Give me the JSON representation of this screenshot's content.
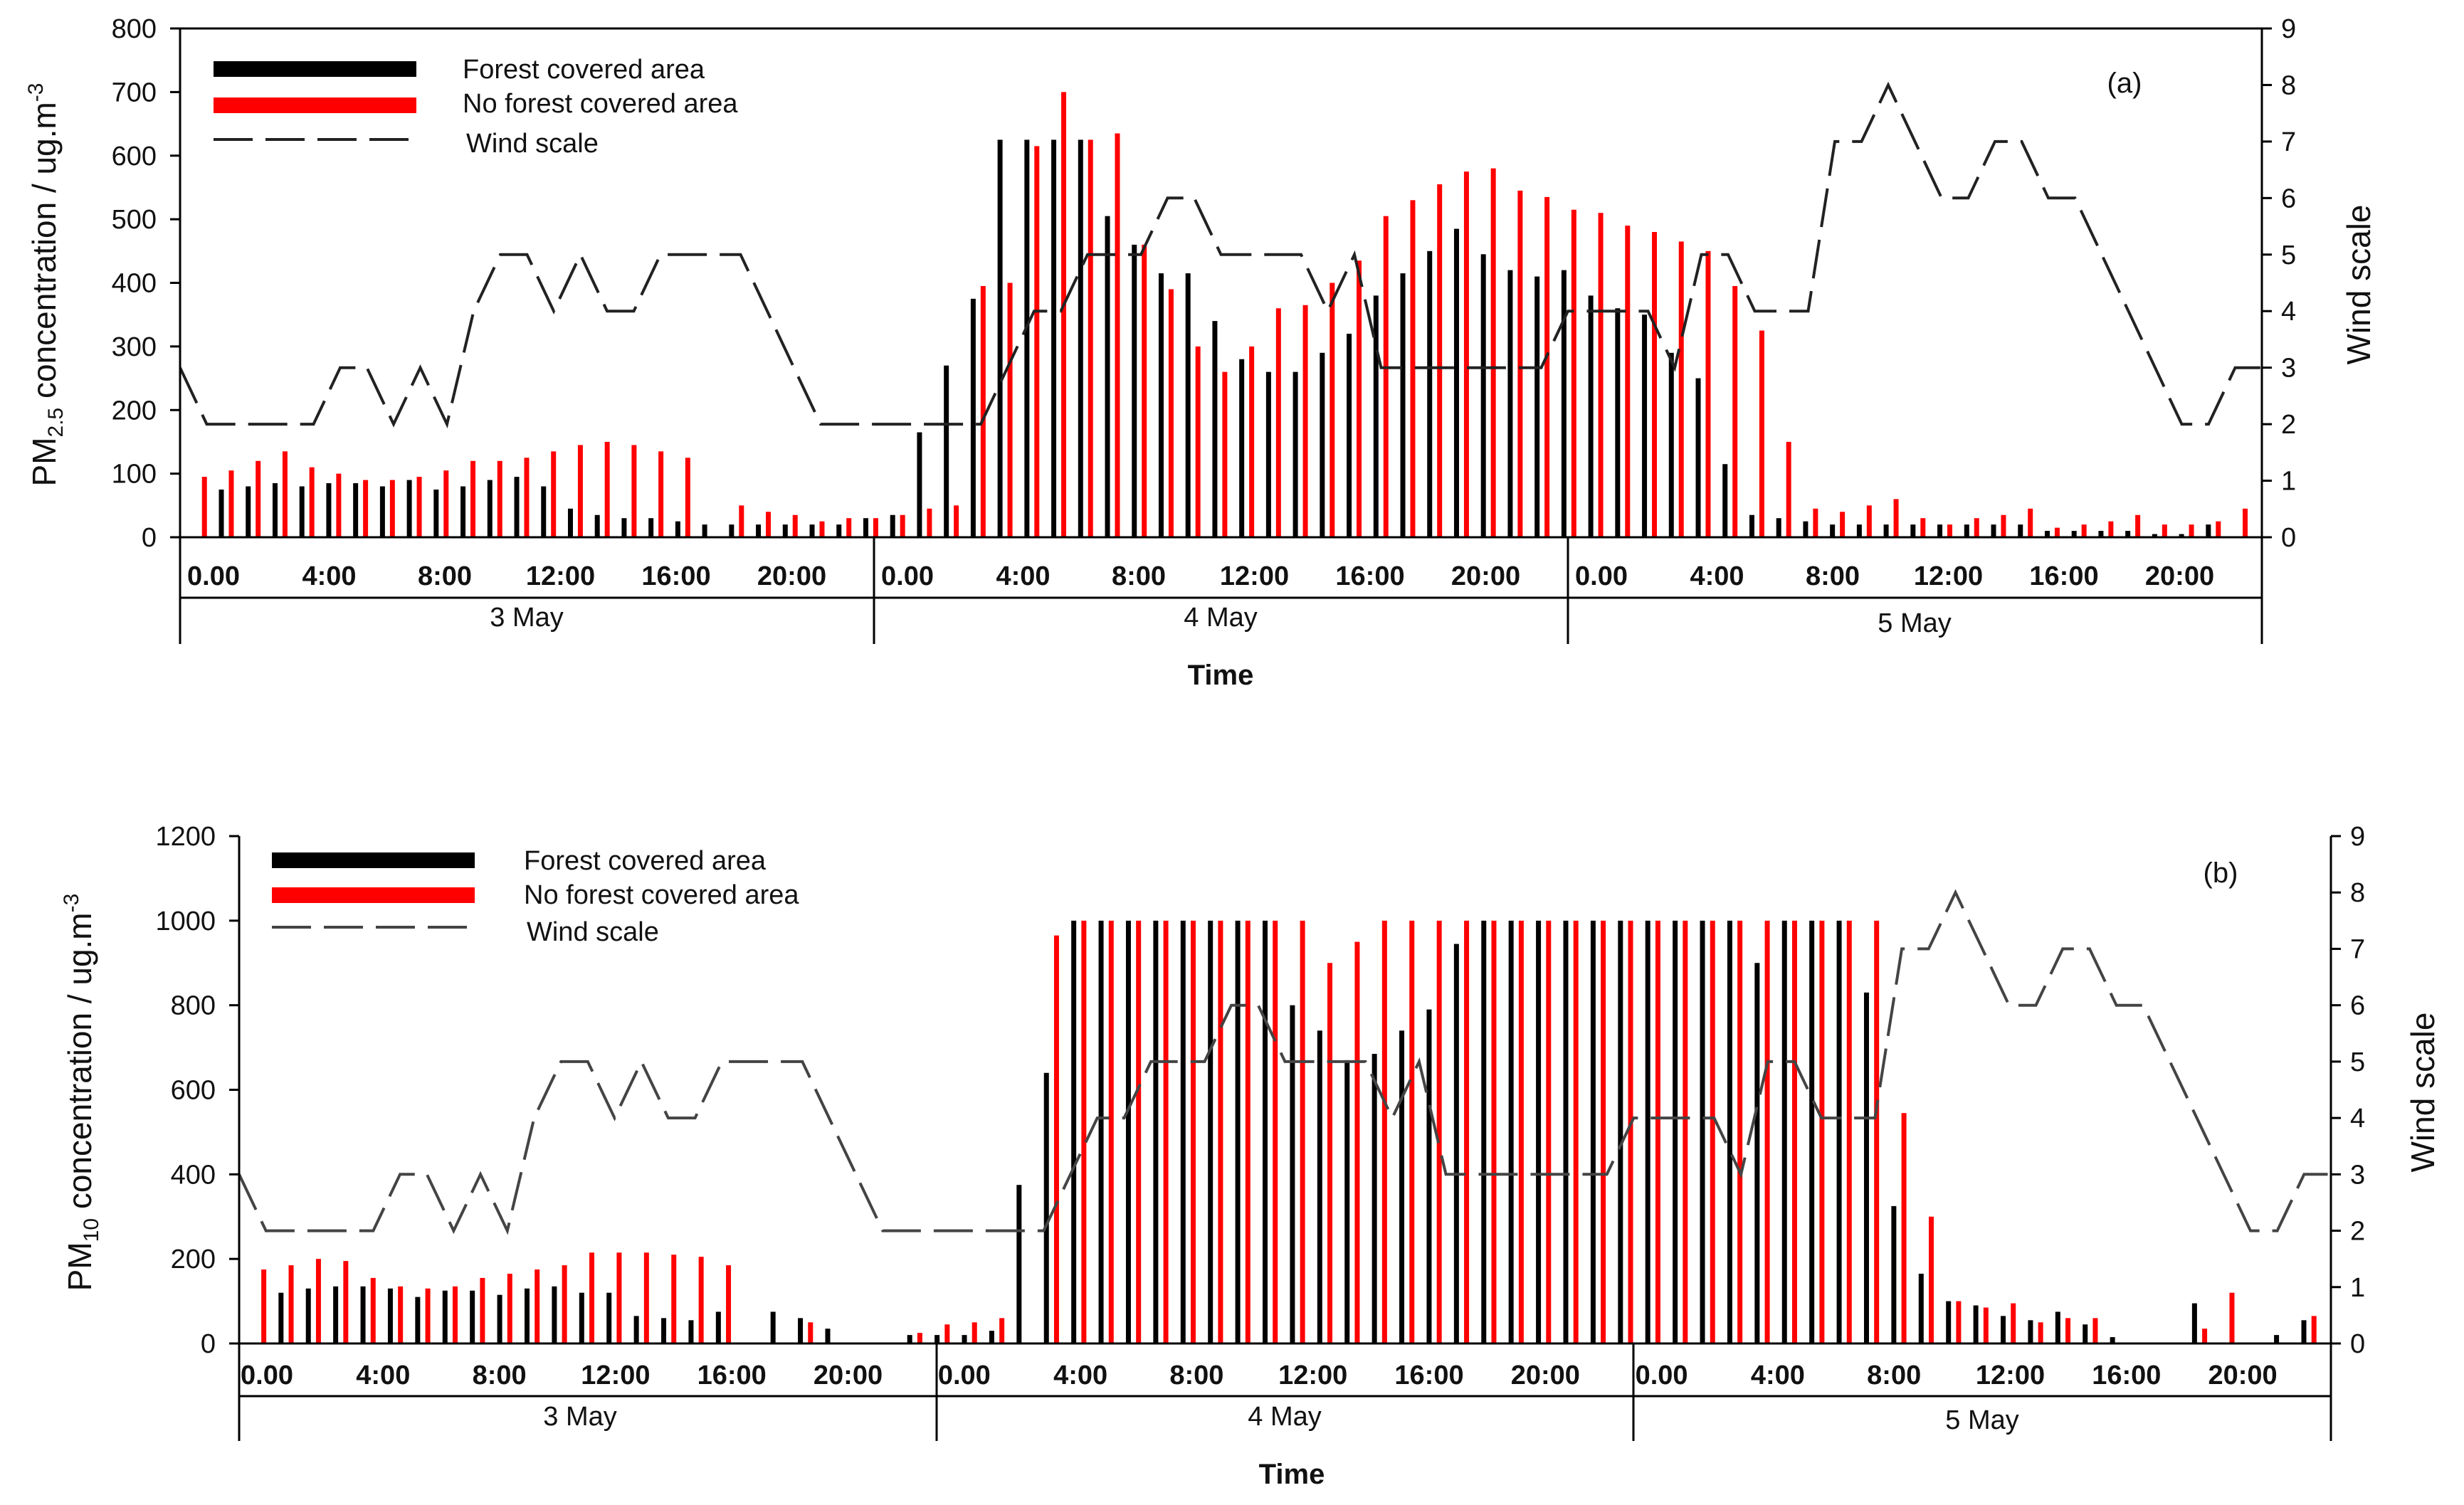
{
  "chart_data": [
    {
      "type": "bar",
      "panel_label": "(a)",
      "y_label": {
        "prefix": "PM",
        "sub": "2.5",
        "middle": " concentration / ug.m",
        "sup": "-3"
      },
      "y2_label": "Wind scale",
      "x_label": "Time",
      "ylim": [
        0,
        800
      ],
      "yticks": [
        "0",
        "100",
        "200",
        "300",
        "400",
        "500",
        "600",
        "700",
        "800"
      ],
      "y2lim": [
        0,
        9
      ],
      "y2ticks": [
        "0",
        "1",
        "2",
        "3",
        "4",
        "5",
        "6",
        "7",
        "8",
        "9"
      ],
      "hour_ticks": [
        "0.00",
        "4:00",
        "8:00",
        "12:00",
        "16:00",
        "20:00",
        "0.00",
        "4:00",
        "8:00",
        "12:00",
        "16:00",
        "20:00",
        "0.00",
        "4:00",
        "8:00",
        "12:00",
        "16:00",
        "20:00"
      ],
      "day_labels": [
        "3 May",
        "4 May",
        "5 May"
      ],
      "legend": [
        "Forest covered area",
        "No forest covered area",
        "Wind  scale"
      ],
      "colors": {
        "forest": "#000000",
        "no_forest": "#ff0000",
        "wind": "#222222"
      },
      "series": [
        {
          "name": "Forest covered area",
          "values": [
            0,
            75,
            80,
            85,
            80,
            85,
            85,
            80,
            90,
            75,
            80,
            90,
            95,
            80,
            45,
            35,
            30,
            30,
            25,
            20,
            20,
            20,
            20,
            20,
            20,
            30,
            35,
            165,
            270,
            375,
            625,
            625,
            625,
            625,
            505,
            460,
            415,
            415,
            340,
            280,
            260,
            260,
            290,
            320,
            380,
            415,
            450,
            485,
            445,
            420,
            410,
            420,
            380,
            360,
            350,
            290,
            250,
            115,
            35,
            30,
            25,
            20,
            20,
            20,
            20,
            20,
            20,
            20,
            20,
            10,
            10,
            10,
            10,
            5,
            5,
            20
          ]
        },
        {
          "name": "No forest covered area",
          "values": [
            95,
            105,
            120,
            135,
            110,
            100,
            90,
            90,
            95,
            105,
            120,
            120,
            125,
            135,
            145,
            150,
            145,
            135,
            125,
            0,
            50,
            40,
            35,
            25,
            30,
            30,
            35,
            45,
            50,
            395,
            400,
            615,
            700,
            625,
            635,
            460,
            390,
            300,
            260,
            300,
            360,
            365,
            400,
            435,
            505,
            530,
            555,
            575,
            580,
            545,
            535,
            515,
            510,
            490,
            480,
            465,
            450,
            395,
            325,
            150,
            45,
            40,
            50,
            60,
            30,
            20,
            30,
            35,
            45,
            15,
            20,
            25,
            35,
            20,
            20,
            25,
            45
          ]
        },
        {
          "name": "Wind  scale",
          "values": [
            3,
            2,
            2,
            2,
            2,
            2,
            3,
            3,
            2,
            3,
            2,
            4,
            5,
            5,
            4,
            5,
            4,
            4,
            5,
            5,
            5,
            5,
            4,
            3,
            2,
            2,
            2,
            2,
            2,
            2,
            2,
            3,
            4,
            4,
            5,
            5,
            5,
            6,
            6,
            5,
            5,
            5,
            5,
            4,
            5,
            3,
            3,
            3,
            3,
            3,
            3,
            3,
            4,
            4,
            4,
            4,
            3,
            5,
            5,
            4,
            4,
            4,
            7,
            7,
            8,
            7,
            6,
            6,
            7,
            7,
            6,
            6,
            5,
            4,
            3,
            2,
            2,
            3,
            3
          ]
        }
      ]
    },
    {
      "type": "bar",
      "panel_label": "(b)",
      "y_label": {
        "prefix": "PM",
        "sub": "10",
        "middle": " concentration / ug.m",
        "sup": "-3"
      },
      "y2_label": "Wind scale",
      "x_label": "Time",
      "ylim": [
        0,
        1200
      ],
      "yticks": [
        "0",
        "200",
        "400",
        "600",
        "800",
        "1000",
        "1200"
      ],
      "y2lim": [
        0,
        9
      ],
      "y2ticks": [
        "0",
        "1",
        "2",
        "3",
        "4",
        "5",
        "6",
        "7",
        "8",
        "9"
      ],
      "hour_ticks": [
        "0.00",
        "4:00",
        "8:00",
        "12:00",
        "16:00",
        "20:00",
        "0.00",
        "4:00",
        "8:00",
        "12:00",
        "16:00",
        "20:00",
        "0.00",
        "4:00",
        "8:00",
        "12:00",
        "16:00",
        "20:00"
      ],
      "day_labels": [
        "3 May",
        "4 May",
        "5 May"
      ],
      "legend": [
        "Forest covered area",
        "No forest covered area",
        "Wind  scale"
      ],
      "colors": {
        "forest": "#000000",
        "no_forest": "#ff0000",
        "wind": "#444444"
      },
      "series": [
        {
          "name": "Forest covered area",
          "values": [
            0,
            120,
            130,
            135,
            135,
            130,
            110,
            125,
            125,
            115,
            130,
            135,
            120,
            120,
            65,
            60,
            55,
            75,
            0,
            75,
            60,
            35,
            0,
            0,
            20,
            20,
            20,
            30,
            375,
            640,
            1000,
            1000,
            1000,
            1000,
            1000,
            1000,
            1000,
            1000,
            800,
            740,
            670,
            685,
            740,
            790,
            945,
            1000,
            1000,
            1000,
            1000,
            1000,
            1000,
            1000,
            1000,
            1000,
            1000,
            900,
            1000,
            1000,
            1000,
            830,
            325,
            165,
            100,
            90,
            65,
            55,
            75,
            45,
            15,
            0,
            0,
            95,
            0,
            0,
            20,
            55
          ]
        },
        {
          "name": "No forest covered area",
          "values": [
            175,
            185,
            200,
            195,
            155,
            135,
            130,
            135,
            155,
            165,
            175,
            185,
            215,
            215,
            215,
            210,
            205,
            185,
            0,
            0,
            50,
            0,
            0,
            0,
            25,
            45,
            50,
            60,
            0,
            965,
            1000,
            1000,
            1000,
            1000,
            1000,
            1000,
            1000,
            1000,
            1000,
            900,
            950,
            1000,
            1000,
            1000,
            1000,
            1000,
            1000,
            1000,
            1000,
            1000,
            1000,
            1000,
            1000,
            1000,
            1000,
            1000,
            1000,
            1000,
            1000,
            1000,
            545,
            300,
            100,
            85,
            95,
            50,
            60,
            60,
            0,
            0,
            0,
            35,
            120,
            0,
            0,
            65
          ]
        },
        {
          "name": "Wind  scale",
          "values": [
            3,
            2,
            2,
            2,
            2,
            2,
            3,
            3,
            2,
            3,
            2,
            4,
            5,
            5,
            4,
            5,
            4,
            4,
            5,
            5,
            5,
            5,
            4,
            3,
            2,
            2,
            2,
            2,
            2,
            2,
            2,
            3,
            4,
            4,
            5,
            5,
            5,
            6,
            6,
            5,
            5,
            5,
            5,
            4,
            5,
            3,
            3,
            3,
            3,
            3,
            3,
            3,
            4,
            4,
            4,
            4,
            3,
            5,
            5,
            4,
            4,
            4,
            7,
            7,
            8,
            7,
            6,
            6,
            7,
            7,
            6,
            6,
            5,
            4,
            3,
            2,
            2,
            3,
            3
          ]
        }
      ]
    }
  ]
}
